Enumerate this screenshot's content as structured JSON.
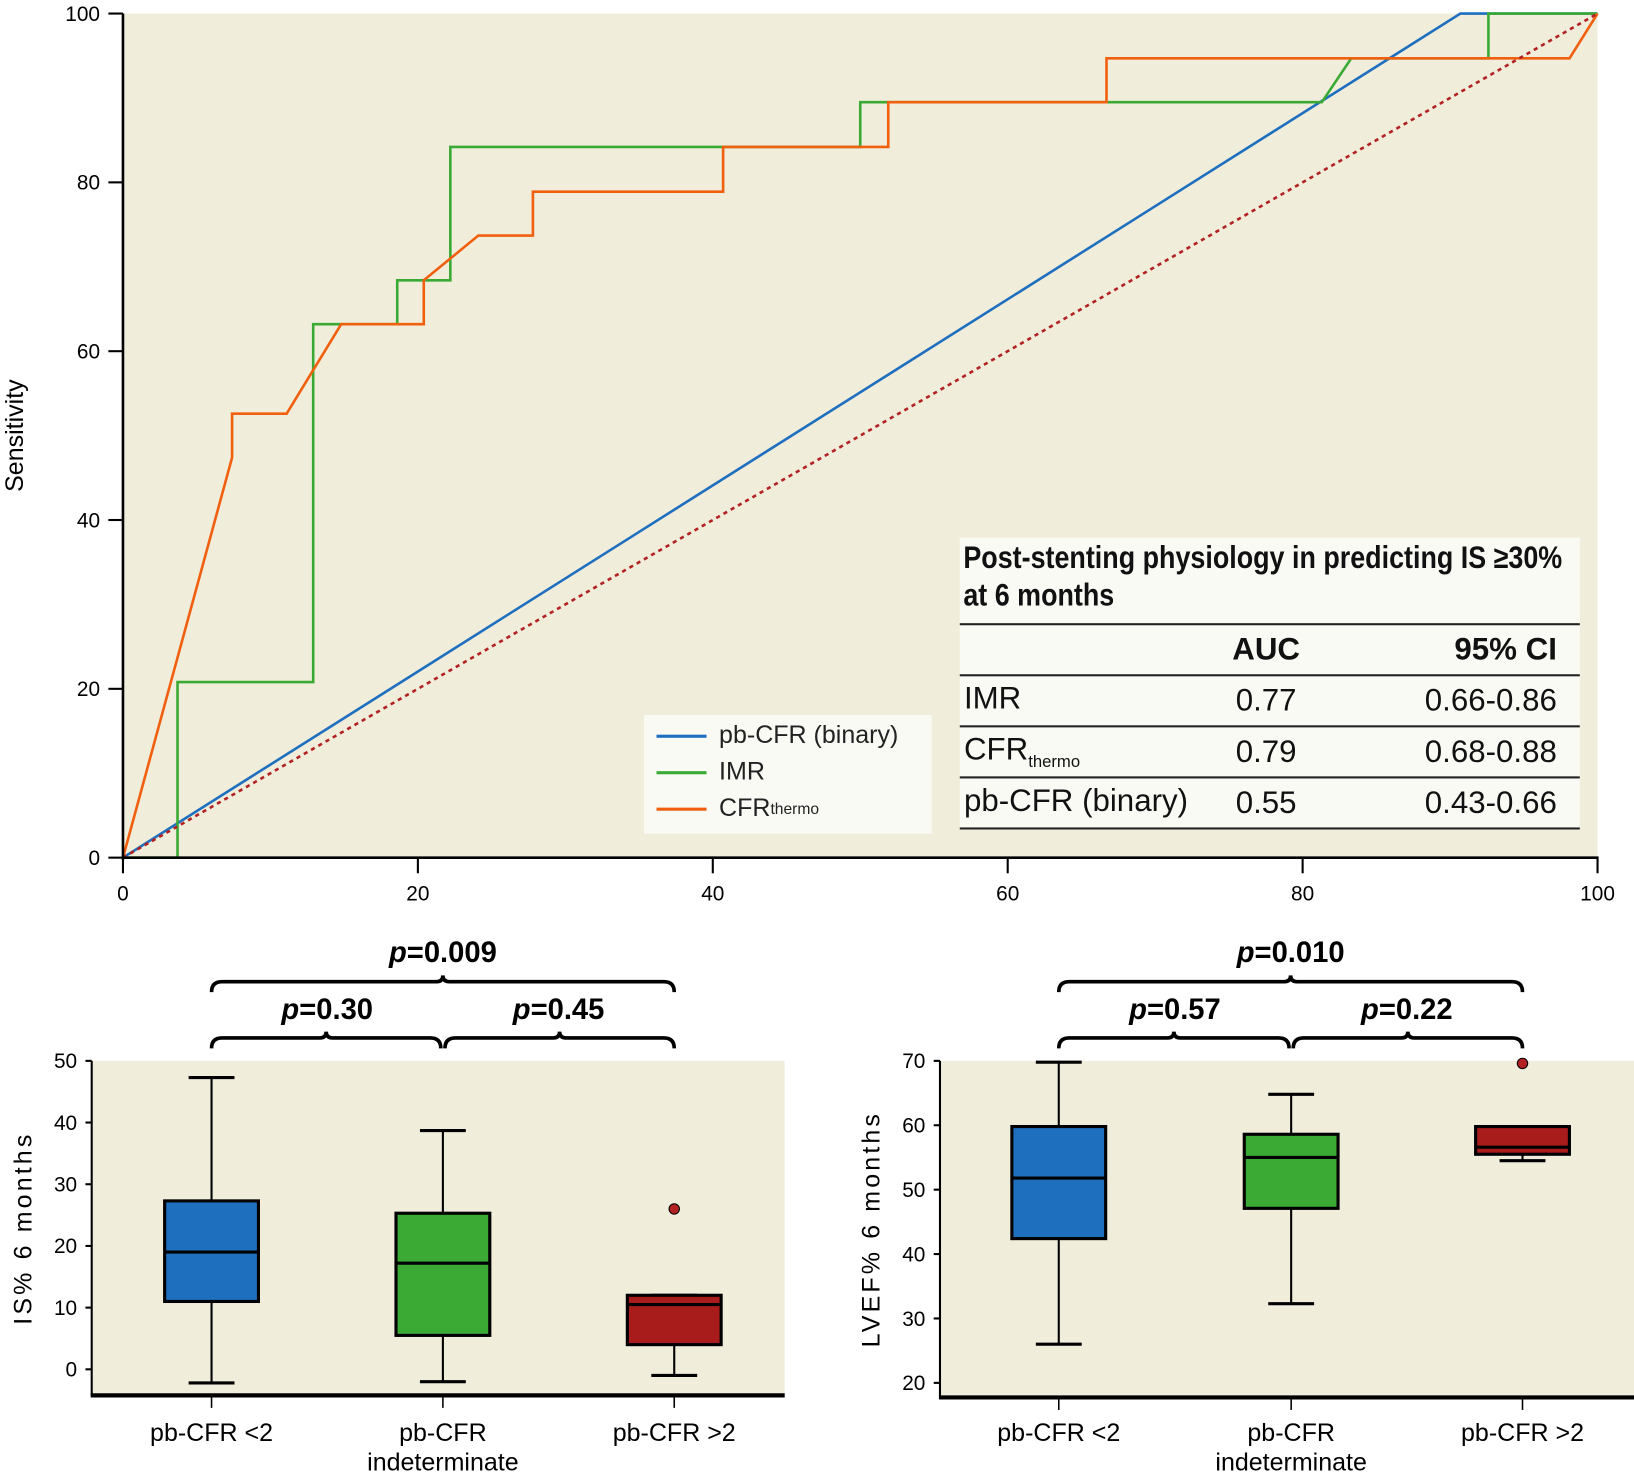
{
  "chart_data": [
    {
      "type": "line",
      "title": "",
      "xlabel": "",
      "ylabel": "Sensitivity",
      "xlim": [
        0,
        100
      ],
      "ylim": [
        0,
        100
      ],
      "xticks": [
        "0",
        "20",
        "40",
        "60",
        "80",
        "100"
      ],
      "yticks": [
        "0",
        "20",
        "40",
        "60",
        "80",
        "100"
      ],
      "series": [
        {
          "name": "pb-CFR (binary)",
          "color": "#1f6fbf",
          "x": [
            0,
            90.7,
            100
          ],
          "y": [
            0,
            100,
            100
          ]
        },
        {
          "name": "IMR",
          "color": "#3aaa35",
          "x": [
            0,
            3.7,
            3.7,
            12.9,
            12.9,
            18.6,
            18.6,
            22.2,
            22.2,
            50,
            50,
            81.3,
            83.3,
            92.6,
            92.6,
            100
          ],
          "y": [
            0,
            0,
            20.8,
            20.8,
            63.2,
            63.2,
            68.4,
            68.4,
            84.2,
            84.2,
            89.5,
            89.5,
            94.7,
            94.7,
            100,
            100
          ]
        },
        {
          "name": "CFR",
          "name_sub": "thermo",
          "color": "#f0600f",
          "x": [
            0,
            7.4,
            7.4,
            11.1,
            14.8,
            20.4,
            20.4,
            24.1,
            27.8,
            27.8,
            40.7,
            40.7,
            51.9,
            51.9,
            66.7,
            66.7,
            98.1,
            100
          ],
          "y": [
            0,
            47.4,
            52.6,
            52.6,
            63.2,
            63.2,
            68.4,
            73.7,
            73.7,
            78.9,
            78.9,
            84.2,
            84.2,
            89.5,
            89.5,
            94.7,
            94.7,
            100
          ]
        },
        {
          "name": "reference",
          "color": "#b22222",
          "dashed": true,
          "x": [
            0,
            100
          ],
          "y": [
            0,
            100
          ]
        }
      ],
      "legend_position": "bottom-center",
      "table": {
        "title": "Post-stenting physiology in predicting IS ≥30% at 6 months",
        "headers": [
          "",
          "AUC",
          "95% CI"
        ],
        "rows": [
          {
            "name": "IMR",
            "sub": "",
            "auc": "0.77",
            "ci": "0.66-0.86"
          },
          {
            "name": "CFR",
            "sub": "thermo",
            "auc": "0.79",
            "ci": "0.68-0.88"
          },
          {
            "name": "pb-CFR (binary)",
            "sub": "",
            "auc": "0.55",
            "ci": "0.43-0.66"
          }
        ]
      }
    },
    {
      "type": "box",
      "ylabel": "IS% 6 months",
      "ylim": [
        -4,
        50
      ],
      "yticks": [
        0,
        10,
        20,
        30,
        40,
        50
      ],
      "categories": [
        "pb-CFR <2",
        "pb-CFR\nindeterminate",
        "pb-CFR >2"
      ],
      "boxes": [
        {
          "min": -2.2,
          "q1": 11,
          "median": 19,
          "q3": 27.3,
          "max": 47.3,
          "color": "#1f6fbf",
          "outliers": []
        },
        {
          "min": -2,
          "q1": 5.5,
          "median": 17.2,
          "q3": 25.3,
          "max": 38.7,
          "color": "#3aaa35",
          "outliers": []
        },
        {
          "min": -1,
          "q1": 4,
          "median": 10.5,
          "q3": 12,
          "max": 12,
          "color": "#a81c1c",
          "outliers": [
            26
          ]
        }
      ],
      "pvalues": {
        "overall": "0.009",
        "pair12": "0.30",
        "pair23": "0.45"
      }
    },
    {
      "type": "box",
      "ylabel": "LVEF% 6 months",
      "ylim": [
        18,
        70
      ],
      "yticks": [
        20,
        30,
        40,
        50,
        60,
        70
      ],
      "categories": [
        "pb-CFR <2",
        "pb-CFR\nindeterminate",
        "pb-CFR >2"
      ],
      "boxes": [
        {
          "min": 26,
          "q1": 42.4,
          "median": 51.8,
          "q3": 59.8,
          "max": 69.8,
          "color": "#1f6fbf",
          "outliers": []
        },
        {
          "min": 32.3,
          "q1": 47.1,
          "median": 55,
          "q3": 58.6,
          "max": 64.8,
          "color": "#3aaa35",
          "outliers": []
        },
        {
          "min": 54.5,
          "q1": 55.5,
          "median": 56.6,
          "q3": 59.8,
          "max": 59.8,
          "color": "#a81c1c",
          "outliers": [
            69.6
          ]
        }
      ],
      "pvalues": {
        "overall": "0.010",
        "pair12": "0.57",
        "pair23": "0.22"
      }
    }
  ],
  "p_prefix": "p=",
  "bg_color": "#f1eddb"
}
